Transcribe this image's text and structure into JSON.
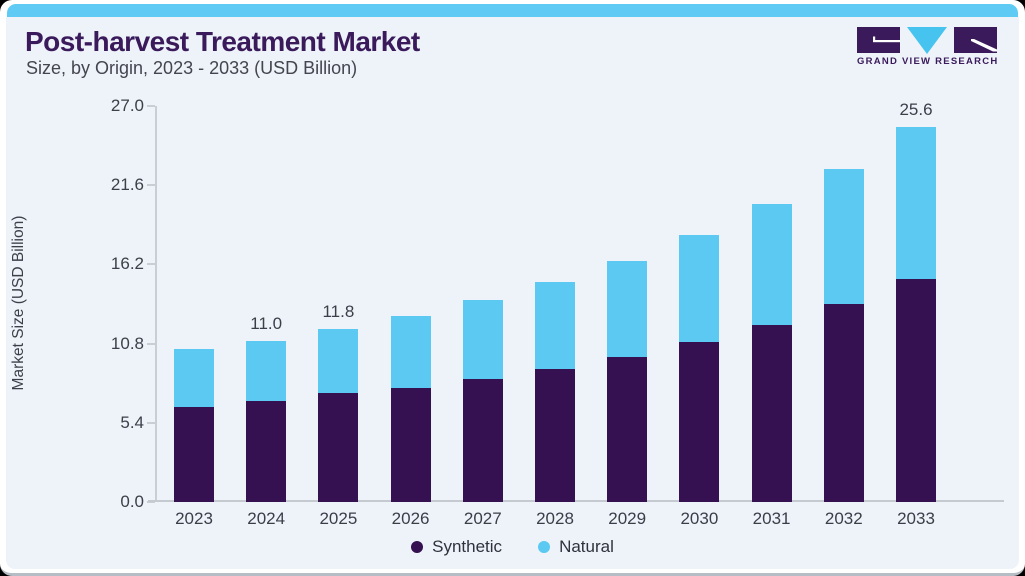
{
  "header": {
    "title": "Post-harvest Treatment Market",
    "subtitle": "Size, by Origin, 2023 - 2033 (USD Billion)"
  },
  "logo": {
    "text": "GRAND VIEW RESEARCH"
  },
  "colors": {
    "synthetic": "#351152",
    "natural": "#5bc9f2",
    "top_strip": "#5fcbf4",
    "content_background": "#edf3f9",
    "title_text": "#3a1a5b",
    "axis_line": "#c9ced5"
  },
  "chart_data": {
    "type": "bar",
    "stacked": true,
    "title": "Post-harvest Treatment Market Size, by Origin, 2023 - 2033 (USD Billion)",
    "categories": [
      "2023",
      "2024",
      "2025",
      "2026",
      "2027",
      "2028",
      "2029",
      "2030",
      "2031",
      "2032",
      "2033"
    ],
    "series": [
      {
        "name": "Synthetic",
        "color": "#351152",
        "values": [
          6.5,
          6.9,
          7.4,
          7.8,
          8.4,
          9.1,
          9.9,
          10.9,
          12.1,
          13.5,
          15.2
        ]
      },
      {
        "name": "Natural",
        "color": "#5bc9f2",
        "values": [
          3.9,
          4.1,
          4.4,
          4.9,
          5.4,
          5.9,
          6.5,
          7.3,
          8.2,
          9.2,
          10.4
        ]
      }
    ],
    "totals": [
      10.4,
      11.0,
      11.8,
      12.7,
      13.8,
      15.0,
      16.4,
      18.2,
      20.3,
      22.7,
      25.6
    ],
    "bar_labels": [
      "",
      "11.0",
      "11.8",
      "",
      "",
      "",
      "",
      "",
      "",
      "",
      "25.6"
    ],
    "xlabel": "",
    "ylabel": "Market Size (USD Billion)",
    "ylim": [
      0,
      27
    ],
    "yticks": [
      0.0,
      5.4,
      10.8,
      16.2,
      21.6,
      27.0
    ],
    "ytick_labels": [
      "0.0",
      "5.4",
      "10.8",
      "16.2",
      "21.6",
      "27.0"
    ],
    "grid": false,
    "legend_position": "bottom",
    "legend": [
      "Synthetic",
      "Natural"
    ]
  }
}
